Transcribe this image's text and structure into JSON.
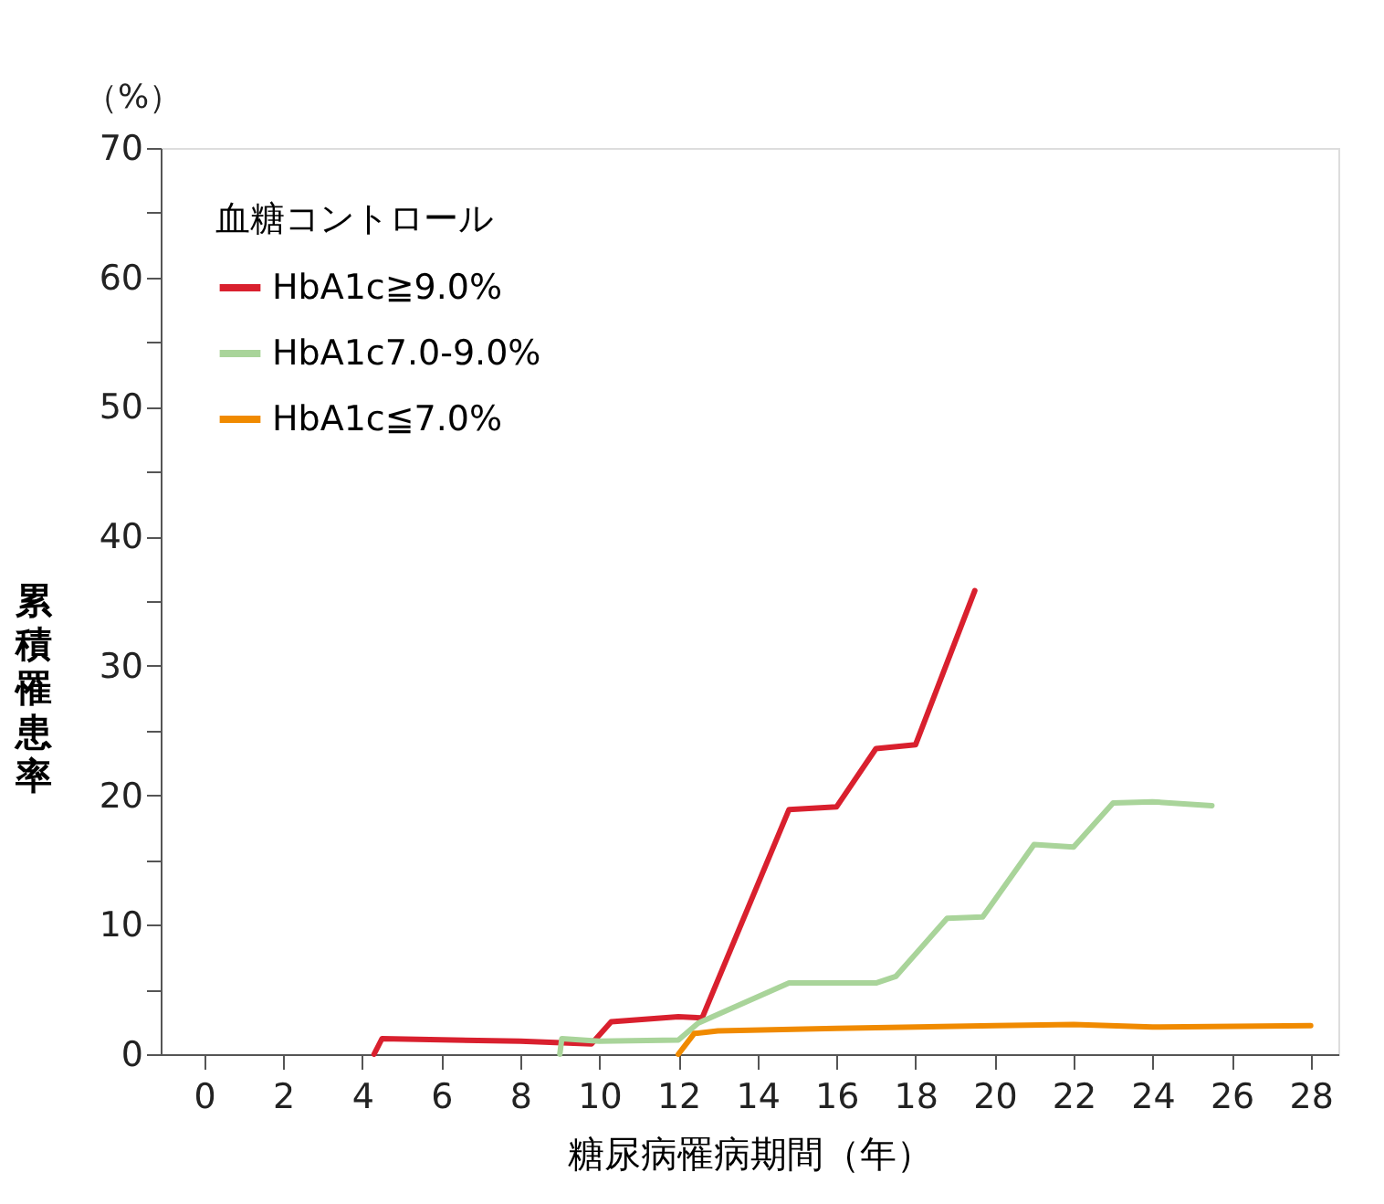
{
  "chart_data": {
    "type": "line",
    "xlabel": "糖尿病罹病期間（年）",
    "ylabel": "累積罹患率",
    "legend_title": "血糖コントロール",
    "annotations": [
      "（%）"
    ],
    "xlim": [
      -1.1,
      28.7
    ],
    "ylim": [
      0,
      70
    ],
    "xticks": [
      0,
      2,
      4,
      6,
      8,
      10,
      12,
      14,
      16,
      18,
      20,
      22,
      24,
      26,
      28
    ],
    "yticks": [
      0,
      {
        "value": 5,
        "label": null
      },
      10,
      {
        "value": 15,
        "label": null
      },
      20,
      {
        "value": 25,
        "label": null
      },
      30,
      {
        "value": 35,
        "label": null
      },
      40,
      {
        "value": 45,
        "label": null
      },
      50,
      {
        "value": 55,
        "label": null
      },
      60,
      {
        "value": 65,
        "label": null
      },
      70
    ],
    "grid": false,
    "legend": "top left",
    "line_style": "solid",
    "marker": "none",
    "series": [
      {
        "name": "HbA1c≧9.0%",
        "color": "#d9202e",
        "x": [
          4.3,
          4.5,
          8,
          9.8,
          10.3,
          12,
          12.6,
          14.8,
          16,
          17,
          18,
          19.5
        ],
        "values": [
          0,
          1.2,
          1.0,
          0.8,
          2.5,
          2.9,
          2.8,
          18.9,
          19.1,
          23.6,
          23.9,
          35.8
        ]
      },
      {
        "name": "HbA1c7.0-9.0%",
        "color": "#a9d49a",
        "x": [
          9,
          9.05,
          10,
          12,
          12.5,
          14.8,
          17,
          17.5,
          18.8,
          19.7,
          21,
          22,
          23,
          24,
          25.5
        ],
        "values": [
          0,
          1.2,
          1.0,
          1.1,
          2.4,
          5.5,
          5.5,
          6.0,
          10.5,
          10.6,
          16.2,
          16.0,
          19.4,
          19.5,
          19.2
        ]
      },
      {
        "name": "HbA1c≦7.0%",
        "color": "#f08a00",
        "x": [
          12,
          12.4,
          13,
          16,
          20,
          22,
          24,
          28
        ],
        "values": [
          0,
          1.6,
          1.8,
          2.0,
          2.2,
          2.3,
          2.1,
          2.2
        ]
      }
    ]
  }
}
